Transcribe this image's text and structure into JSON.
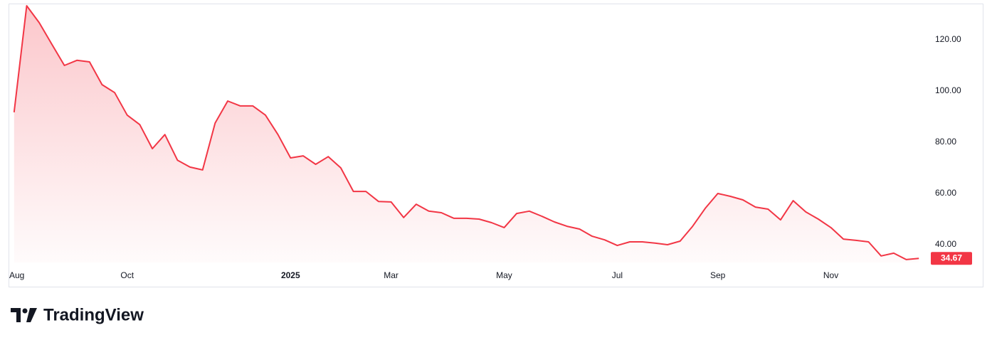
{
  "chart_data": {
    "type": "area",
    "color": "#f23645",
    "values": [
      91.7,
      133.3,
      126.7,
      118.3,
      110,
      112,
      111.4,
      102.5,
      99.4,
      90.6,
      86.9,
      77.5,
      83,
      73,
      70.3,
      69.2,
      87.5,
      96.1,
      94.2,
      94.2,
      90.6,
      83,
      73.9,
      74.7,
      71.4,
      74.4,
      70,
      60.8,
      60.8,
      56.9,
      56.7,
      50.6,
      55.8,
      53.1,
      52.5,
      50.3,
      50.3,
      50,
      48.6,
      46.7,
      52.2,
      53.1,
      51.1,
      48.9,
      47.2,
      46.1,
      43.3,
      41.9,
      39.7,
      41.1,
      41.1,
      40.6,
      40,
      41.4,
      47.2,
      54.2,
      60,
      58.9,
      57.5,
      54.7,
      53.9,
      49.7,
      57.2,
      52.8,
      50,
      46.7,
      42.2,
      41.7,
      41.1,
      35.6,
      36.7,
      34.2,
      34.67
    ],
    "last_value_label": "34.67",
    "xlim": [
      -0.5,
      72.5
    ],
    "xticks": [
      {
        "value": 0.28,
        "label": "Aug"
      },
      {
        "value": 9,
        "label": "Oct"
      },
      {
        "value": 22,
        "label": "2025"
      },
      {
        "value": 30,
        "label": "Mar"
      },
      {
        "value": 39,
        "label": "May"
      },
      {
        "value": 48,
        "label": "Jul"
      },
      {
        "value": 56,
        "label": "Sep"
      },
      {
        "value": 65,
        "label": "Nov"
      }
    ],
    "ylim": [
      33,
      135
    ],
    "yticks": [
      {
        "value": 40,
        "label": "40.00"
      },
      {
        "value": 60,
        "label": "60.00"
      },
      {
        "value": 80,
        "label": "80.00"
      },
      {
        "value": 100,
        "label": "100.00"
      },
      {
        "value": 120,
        "label": "120.00"
      }
    ],
    "brand": "TradingView"
  }
}
